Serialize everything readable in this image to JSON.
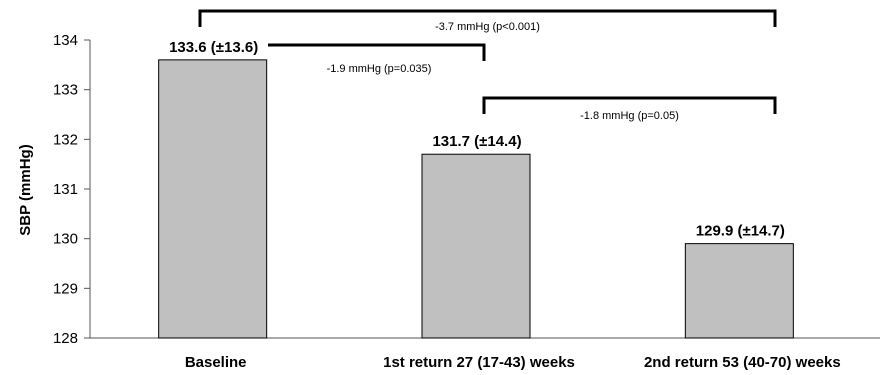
{
  "chart_data": {
    "type": "bar",
    "categories": [
      "Baseline",
      "1st return 27 (17-43) weeks",
      "2nd return 53 (40-70) weeks"
    ],
    "values": [
      133.6,
      131.7,
      129.9
    ],
    "data_labels": [
      "133.6 (±13.6)",
      "131.7 (±14.4)",
      "129.9 (±14.7)"
    ],
    "ylabel": "SBP (mmHg)",
    "ylim": [
      128,
      134
    ],
    "yticks": [
      128,
      129,
      130,
      131,
      132,
      133,
      134
    ],
    "bar_color": "#c0c0c0",
    "grid": false,
    "annotations": [
      {
        "from": 0,
        "to": 2,
        "label": "-3.7 mmHg (p<0.001)"
      },
      {
        "from": 0,
        "to": 1,
        "label": "-1.9 mmHg (p=0.035)"
      },
      {
        "from": 1,
        "to": 2,
        "label": "-1.8 mmHg (p=0.05)"
      }
    ]
  }
}
